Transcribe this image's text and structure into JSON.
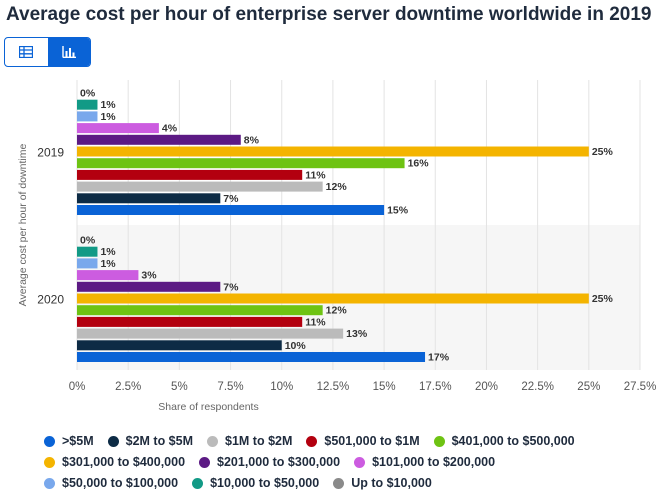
{
  "title": "Average cost per hour of enterprise server downtime worldwide in 2019",
  "view_toggle": {
    "table_icon": "table-icon",
    "chart_icon": "bar-chart-icon",
    "active": "chart"
  },
  "chart_data": {
    "type": "bar",
    "orientation": "horizontal",
    "title": "Average cost per hour of enterprise server downtime worldwide in 2019",
    "xlabel": "Share of respondents",
    "ylabel": "Average cost per hour of downtime",
    "categories": [
      "2019",
      "2020"
    ],
    "xlim": [
      0,
      27.5
    ],
    "xticks": [
      "0%",
      "2.5%",
      "5%",
      "7.5%",
      "10%",
      "12.5%",
      "15%",
      "17.5%",
      "20%",
      "22.5%",
      "25%",
      "27.5%"
    ],
    "series": [
      {
        "name": "Up to $10,000",
        "color": "#8a8a8a",
        "values": [
          0,
          0
        ],
        "labels": [
          "0%",
          "0%"
        ]
      },
      {
        "name": "$10,000 to $50,000",
        "color": "#129a86",
        "values": [
          1,
          1
        ],
        "labels": [
          "1%",
          "1%"
        ]
      },
      {
        "name": "$50,000 to $100,000",
        "color": "#79a8ec",
        "values": [
          1,
          1
        ],
        "labels": [
          "1%",
          "1%"
        ]
      },
      {
        "name": "$101,000 to $200,000",
        "color": "#cc5ce0",
        "values": [
          4,
          3
        ],
        "labels": [
          "4%",
          "3%"
        ]
      },
      {
        "name": "$201,000 to $300,000",
        "color": "#5c1a84",
        "values": [
          8,
          7
        ],
        "labels": [
          "8%",
          "7%"
        ]
      },
      {
        "name": "$301,000 to $400,000",
        "color": "#f4b400",
        "values": [
          25,
          25
        ],
        "labels": [
          "25%",
          "25%"
        ]
      },
      {
        "name": "$401,000 to $500,000",
        "color": "#6ec313",
        "values": [
          16,
          12
        ],
        "labels": [
          "16%",
          "12%"
        ]
      },
      {
        "name": "$501,000 to $1M",
        "color": "#b3000f",
        "values": [
          11,
          11
        ],
        "labels": [
          "11%",
          "11%"
        ]
      },
      {
        "name": "$1M to $2M",
        "color": "#bbbbbb",
        "values": [
          12,
          13
        ],
        "labels": [
          "12%",
          "13%"
        ]
      },
      {
        "name": "$2M to $5M",
        "color": "#0d2b45",
        "values": [
          7,
          10
        ],
        "labels": [
          "7%",
          "10%"
        ]
      },
      {
        "name": ">$5M",
        "color": "#0a63d6",
        "values": [
          15,
          17
        ],
        "labels": [
          "15%",
          "17%"
        ]
      }
    ],
    "grid": true
  },
  "legend": {
    "rows": [
      [
        {
          "label": ">$5M",
          "color": "#0a63d6"
        },
        {
          "label": "$2M to $5M",
          "color": "#0d2b45"
        },
        {
          "label": "$1M to $2M",
          "color": "#bbbbbb"
        },
        {
          "label": "$501,000 to $1M",
          "color": "#b3000f"
        },
        {
          "label": "$401,000 to $500,000",
          "color": "#6ec313"
        }
      ],
      [
        {
          "label": "$301,000 to $400,000",
          "color": "#f4b400"
        },
        {
          "label": "$201,000 to $300,000",
          "color": "#5c1a84"
        },
        {
          "label": "$101,000 to $200,000",
          "color": "#cc5ce0"
        }
      ],
      [
        {
          "label": "$50,000 to $100,000",
          "color": "#79a8ec"
        },
        {
          "label": "$10,000 to $50,000",
          "color": "#129a86"
        },
        {
          "label": "Up to $10,000",
          "color": "#8a8a8a"
        }
      ]
    ]
  }
}
